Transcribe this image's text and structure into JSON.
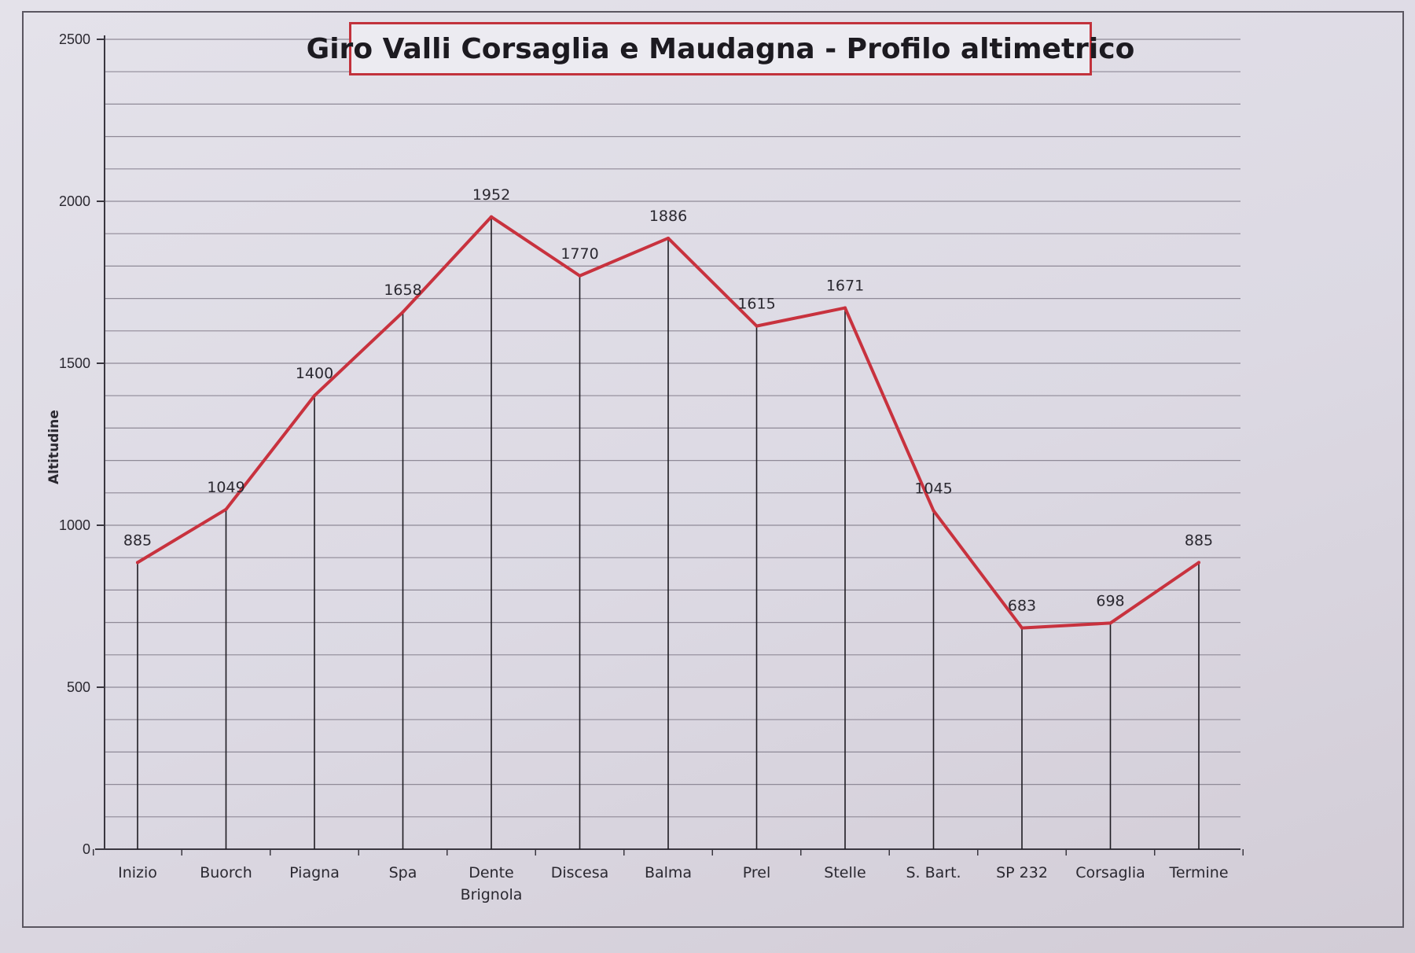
{
  "chart_data": {
    "type": "line",
    "title": "Giro Valli Corsaglia e Maudagna - Profilo altimetrico",
    "xlabel": "",
    "ylabel": "Altitudine",
    "categories": [
      "Inizio",
      "Buorch",
      "Piagna",
      "Spa",
      "Dente Brignola",
      "Discesa",
      "Balma",
      "Prel",
      "Stelle",
      "S. Bart.",
      "SP 232",
      "Corsaglia",
      "Termine"
    ],
    "series": [
      {
        "values": [
          885,
          1049,
          1400,
          1658,
          1952,
          1770,
          1886,
          1615,
          1671,
          1045,
          683,
          698,
          885
        ]
      }
    ],
    "data_labels": [
      "885",
      "1049",
      "1400",
      "1658",
      "1952",
      "1770",
      "1886",
      "1615",
      "1671",
      "1045",
      "683",
      "698",
      "885"
    ],
    "ylim": [
      0,
      2500
    ],
    "yticks": [
      0,
      500,
      1000,
      1500,
      2000,
      2500
    ],
    "grid": true,
    "drop_lines": true,
    "line_color": "#c8323e",
    "title_border_color": "#c2323c"
  }
}
